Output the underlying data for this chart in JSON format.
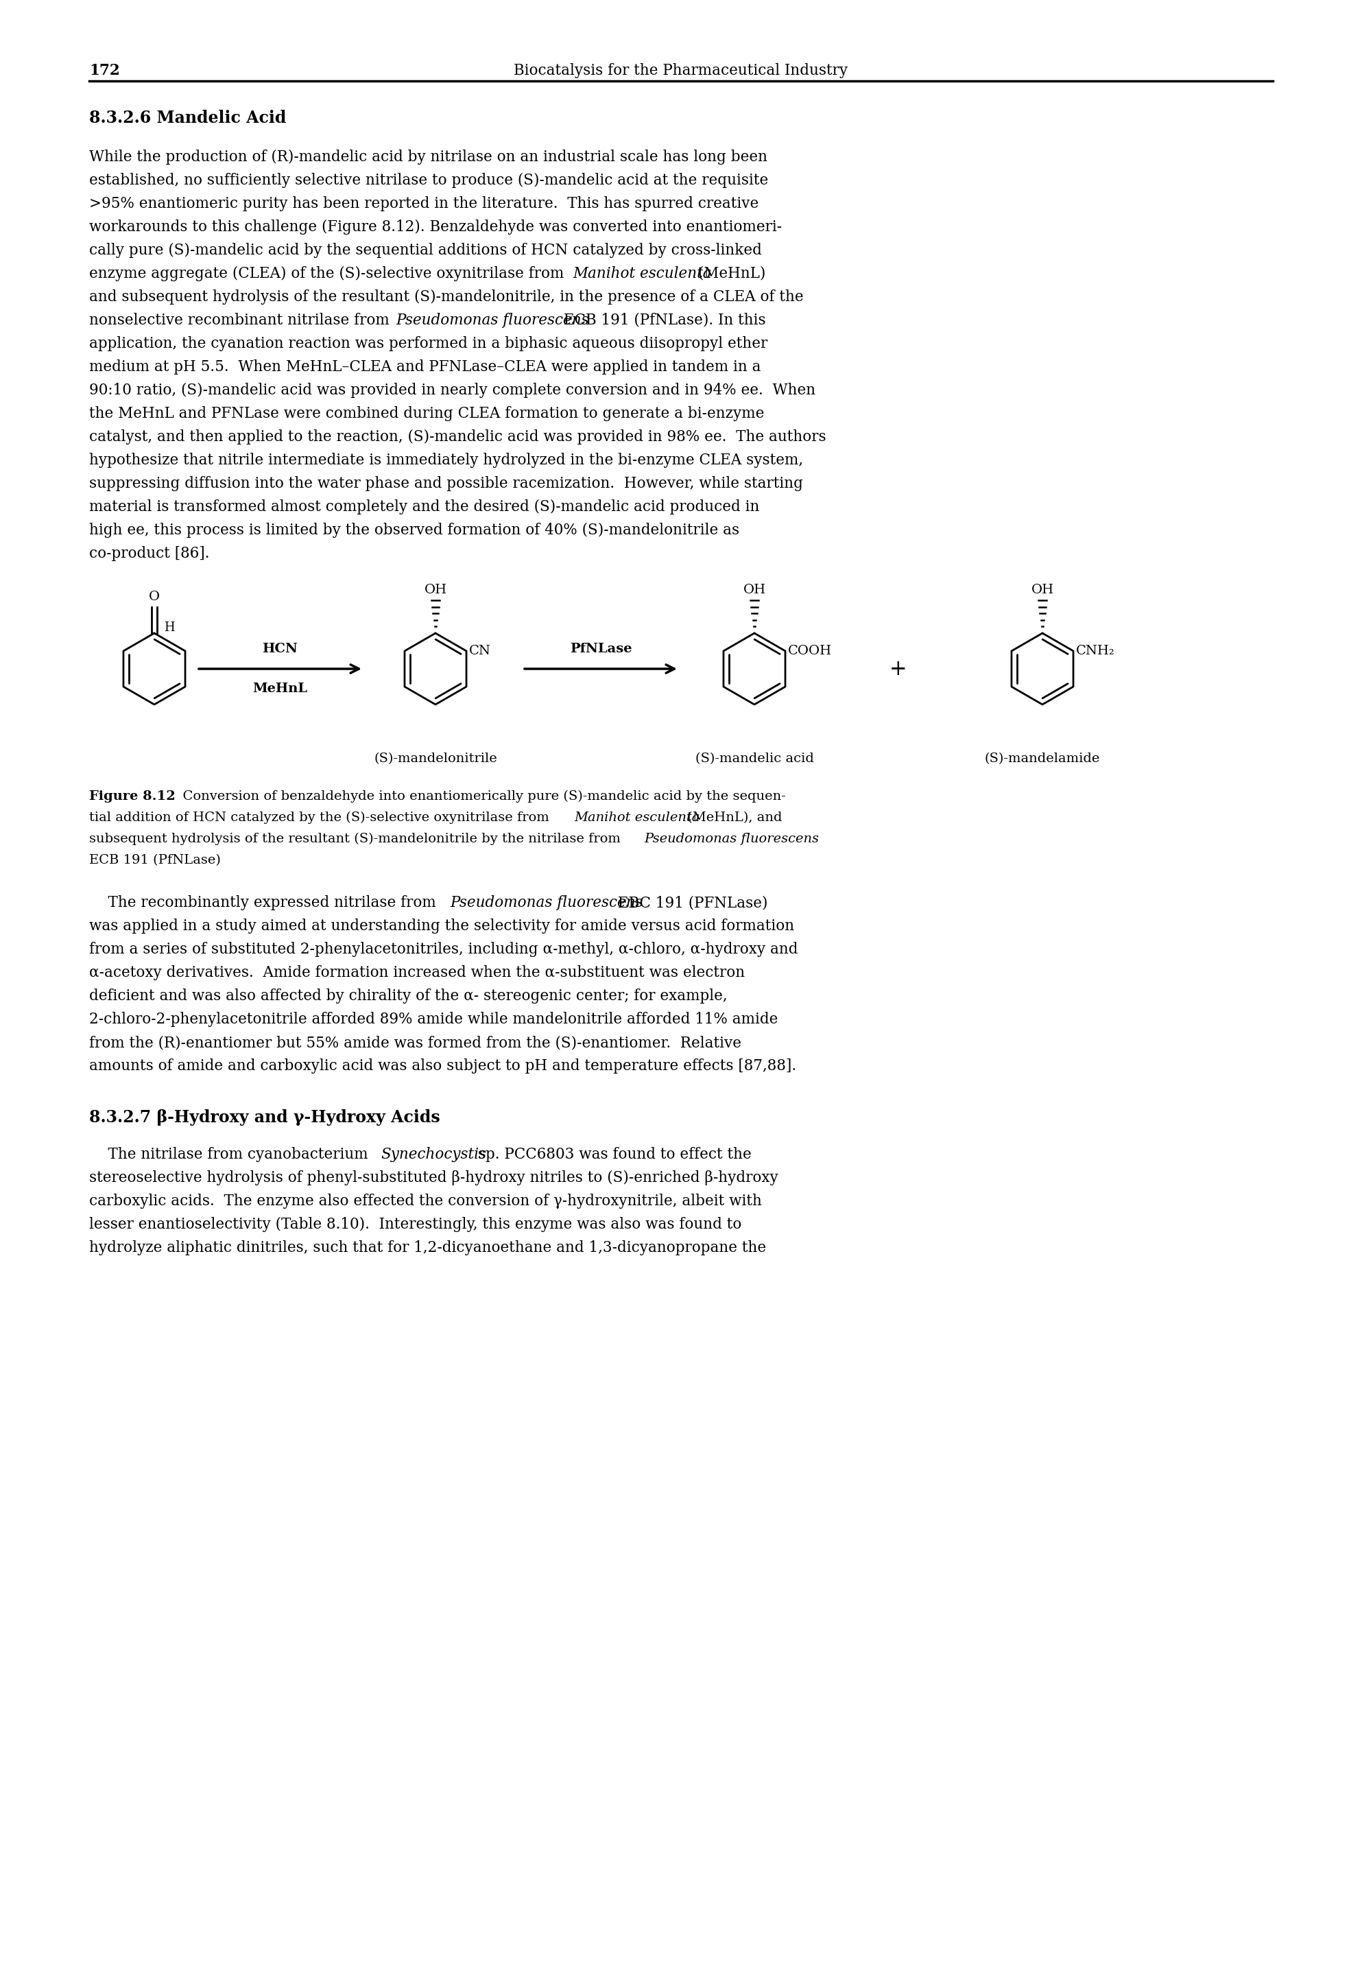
{
  "page_number": "172",
  "header_right": "Biocatalysis for the Pharmaceutical Industry",
  "section1": "8.3.2.6 Mandelic Acid",
  "section2": "8.3.2.7 β-Hydroxy and γ-Hydroxy Acids",
  "p1_lines": [
    "While the production of (R)-mandelic acid by nitrilase on an industrial scale has long been",
    "established, no sufficiently selective nitrilase to produce (S)-mandelic acid at the requisite",
    ">95% enantiomeric purity has been reported in the literature.  This has spurred creative",
    "workarounds to this challenge (Figure 8.12). Benzaldehyde was converted into enantiomeri-",
    "cally pure (S)-mandelic acid by the sequential additions of HCN catalyzed by cross-linked",
    "enzyme aggregate (CLEA) of the (S)-selective oxynitrilase from Manihot esculenta (MeHnL)",
    "and subsequent hydrolysis of the resultant (S)-mandelonitrile, in the presence of a CLEA of the",
    "nonselective recombinant nitrilase from Pseudomonas fluorescens ECB 191 (PfNLase). In this",
    "application, the cyanation reaction was performed in a biphasic aqueous diisopropyl ether",
    "medium at pH 5.5.  When MeHnL–CLEA and PFNLase–CLEA were applied in tandem in a",
    "90:10 ratio, (S)-mandelic acid was provided in nearly complete conversion and in 94% ee.  When",
    "the MeHnL and PFNLase were combined during CLEA formation to generate a bi-enzyme",
    "catalyst, and then applied to the reaction, (S)-mandelic acid was provided in 98% ee.  The authors",
    "hypothesize that nitrile intermediate is immediately hydrolyzed in the bi-enzyme CLEA system,",
    "suppressing diffusion into the water phase and possible racemization.  However, while starting",
    "material is transformed almost completely and the desired (S)-mandelic acid produced in",
    "high ee, this process is limited by the observed formation of 40% (S)-mandelonitrile as",
    "co-product [86]."
  ],
  "p1_italic_map": {
    "5": "Manihot esculenta",
    "7": "Pseudomonas fluorescens"
  },
  "cap_bold": "Figure 8.12",
  "cap_l1": "  Conversion of benzaldehyde into enantiomerically pure (S)-mandelic acid by the sequen-",
  "cap_l2_pre": "tial addition of HCN catalyzed by the (S)-selective oxynitrilase from ",
  "cap_l2_it": "Manihot esculenta",
  "cap_l2_post": " (MeHnL), and",
  "cap_l3_pre": "subsequent hydrolysis of the resultant (S)-mandelonitrile by the nitrilase from ",
  "cap_l3_it": "Pseudomonas fluorescens",
  "cap_l4": "ECB 191 (PfNLase)",
  "p2_lines": [
    "    The recombinantly expressed nitrilase from Pseudomonas fluorescens EBC 191 (PFNLase)",
    "was applied in a study aimed at understanding the selectivity for amide versus acid formation",
    "from a series of substituted 2-phenylacetonitriles, including α-methyl, α-chloro, α-hydroxy and",
    "α-acetoxy derivatives.  Amide formation increased when the α-substituent was electron",
    "deficient and was also affected by chirality of the α- stereogenic center; for example,",
    "2-chloro-2-phenylacetonitrile afforded 89% amide while mandelonitrile afforded 11% amide",
    "from the (R)-enantiomer but 55% amide was formed from the (S)-enantiomer.  Relative",
    "amounts of amide and carboxylic acid was also subject to pH and temperature effects [87,88]."
  ],
  "p2_l0_it": "Pseudomonas fluorescens",
  "p3_lines": [
    "    The nitrilase from cyanobacterium Synechocystis sp. PCC6803 was found to effect the",
    "stereoselective hydrolysis of phenyl-substituted β-hydroxy nitriles to (S)-enriched β-hydroxy",
    "carboxylic acids.  The enzyme also effected the conversion of γ-hydroxynitrile, albeit with",
    "lesser enantioselectivity (Table 8.10).  Interestingly, this enzyme was also was found to",
    "hydrolyze aliphatic dinitriles, such that for 1,2-dicyanoethane and 1,3-dicyanopropane the"
  ],
  "p3_l0_it": "Synechocystis"
}
